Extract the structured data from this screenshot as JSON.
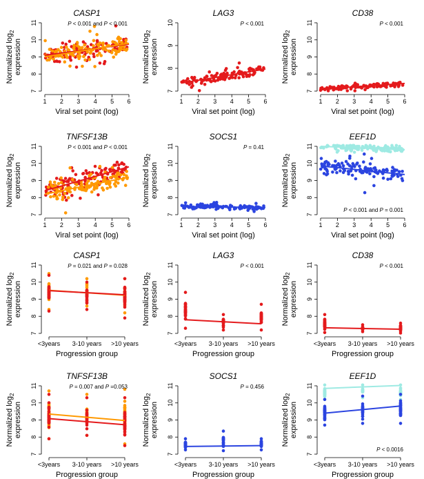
{
  "figure": {
    "panel_count": 12
  },
  "chart_data": [
    {
      "type": "scatter",
      "title": "CASP1",
      "xlabel": "Viral set point (log)",
      "ylabel": "Normalized log2 expression",
      "ylabel_main": "Normalized log",
      "ylabel_sub": "2",
      "ylabel_line2": "expression",
      "xlim": [
        1,
        6
      ],
      "ylim": [
        7,
        11
      ],
      "x_ticks": [
        1,
        2,
        3,
        4,
        5,
        6
      ],
      "y_ticks": [
        7,
        8,
        9,
        10,
        11
      ],
      "pvalue_segments": [
        [
          "P",
          true
        ],
        [
          " < 0.001 and ",
          false
        ],
        [
          "P",
          true
        ],
        [
          " < 0.001",
          false
        ]
      ],
      "pvalue_text": "P < 0.001 and P < 0.001",
      "pvalue_position": "top-right",
      "series": [
        {
          "name": "red",
          "color": "#e41a1c",
          "n": 120,
          "xrange": [
            1,
            5.9
          ],
          "line": [
            [
              1,
              9.1
            ],
            [
              6,
              9.75
            ]
          ],
          "noise": 0.5,
          "seed": 11
        },
        {
          "name": "orange",
          "color": "#ff9900",
          "n": 120,
          "xrange": [
            1,
            5.9
          ],
          "line": [
            [
              1,
              9.0
            ],
            [
              6,
              9.8
            ]
          ],
          "noise": 0.5,
          "seed": 12
        }
      ]
    },
    {
      "type": "scatter",
      "title": "LAG3",
      "xlabel": "Viral set point (log)",
      "ylabel": "Normalized log2 expression",
      "ylabel_main": "Normalized log",
      "ylabel_sub": "2",
      "ylabel_line2": "expression",
      "xlim": [
        1,
        6
      ],
      "ylim": [
        7,
        10
      ],
      "x_ticks": [
        1,
        2,
        3,
        4,
        5,
        6
      ],
      "y_ticks": [
        7,
        8,
        9,
        10
      ],
      "pvalue_segments": [
        [
          "P",
          true
        ],
        [
          " < 0.001",
          false
        ]
      ],
      "pvalue_text": "P < 0.001",
      "pvalue_position": "top-right",
      "series": [
        {
          "name": "red",
          "color": "#e41a1c",
          "n": 120,
          "xrange": [
            1,
            5.9
          ],
          "line": [
            [
              1,
              7.35
            ],
            [
              6,
              7.97
            ]
          ],
          "noise": 0.22,
          "seed": 21
        }
      ]
    },
    {
      "type": "scatter",
      "title": "CD38",
      "xlabel": "Viral set point (log)",
      "ylabel": "Normalized log2 expression",
      "ylabel_main": "Normalized log",
      "ylabel_sub": "2",
      "ylabel_line2": "expression",
      "xlim": [
        1,
        6
      ],
      "ylim": [
        7,
        11
      ],
      "x_ticks": [
        1,
        2,
        3,
        4,
        5,
        6
      ],
      "y_ticks": [
        7,
        8,
        9,
        10,
        11
      ],
      "pvalue_segments": [
        [
          "P",
          true
        ],
        [
          " < 0.001",
          false
        ]
      ],
      "pvalue_text": "P < 0.001",
      "pvalue_position": "top-right",
      "series": [
        {
          "name": "red",
          "color": "#e41a1c",
          "n": 120,
          "xrange": [
            1,
            5.9
          ],
          "line": [
            [
              1,
              7.12
            ],
            [
              6,
              7.45
            ]
          ],
          "noise": 0.12,
          "seed": 31
        }
      ]
    },
    {
      "type": "scatter",
      "title": "TNFSF13B",
      "xlabel": "Viral set point (log)",
      "ylabel": "Normalized log2 expression",
      "ylabel_main": "Normalized log",
      "ylabel_sub": "2",
      "ylabel_line2": "expression",
      "xlim": [
        1,
        6
      ],
      "ylim": [
        7,
        11
      ],
      "x_ticks": [
        1,
        2,
        3,
        4,
        5,
        6
      ],
      "y_ticks": [
        7,
        8,
        9,
        10,
        11
      ],
      "pvalue_segments": [
        [
          "P",
          true
        ],
        [
          " < 0.001 and ",
          false
        ],
        [
          "P",
          true
        ],
        [
          " < 0.001",
          false
        ]
      ],
      "pvalue_text": "P < 0.001 and P < 0.001",
      "pvalue_position": "top-right",
      "series": [
        {
          "name": "red",
          "color": "#e41a1c",
          "n": 120,
          "xrange": [
            1,
            5.9
          ],
          "line": [
            [
              1,
              8.4
            ],
            [
              6,
              9.8
            ]
          ],
          "noise": 0.55,
          "seed": 41
        },
        {
          "name": "orange",
          "color": "#ff9900",
          "n": 120,
          "xrange": [
            1,
            5.9
          ],
          "line": [
            [
              1,
              8.2
            ],
            [
              6,
              9.2
            ]
          ],
          "noise": 0.55,
          "seed": 42
        }
      ]
    },
    {
      "type": "scatter",
      "title": "SOCS1",
      "xlabel": "Viral set point (log)",
      "ylabel": "Normalized log2 expression",
      "ylabel_main": "Normalized log",
      "ylabel_sub": "2",
      "ylabel_line2": "expression",
      "xlim": [
        1,
        6
      ],
      "ylim": [
        7,
        11
      ],
      "x_ticks": [
        1,
        2,
        3,
        4,
        5,
        6
      ],
      "y_ticks": [
        7,
        8,
        9,
        10,
        11
      ],
      "pvalue_segments": [
        [
          "P",
          true
        ],
        [
          " = 0.41",
          false
        ]
      ],
      "pvalue_text": "P = 0.41",
      "pvalue_position": "top-right",
      "series": [
        {
          "name": "blue",
          "color": "#2b44e0",
          "n": 120,
          "xrange": [
            1,
            5.9
          ],
          "line": [
            [
              1,
              7.48
            ],
            [
              6,
              7.42
            ]
          ],
          "noise": 0.12,
          "seed": 51
        }
      ]
    },
    {
      "type": "scatter",
      "title": "EEF1D",
      "xlabel": "Viral set point (log)",
      "ylabel": "Normalized log2 expression",
      "ylabel_main": "Normalized log",
      "ylabel_sub": "2",
      "ylabel_line2": "expression",
      "xlim": [
        1,
        6
      ],
      "ylim": [
        7,
        11
      ],
      "x_ticks": [
        1,
        2,
        3,
        4,
        5,
        6
      ],
      "y_ticks": [
        7,
        8,
        9,
        10,
        11
      ],
      "pvalue_segments": [
        [
          "P",
          true
        ],
        [
          " < 0.001 and ",
          false
        ],
        [
          "P",
          true
        ],
        [
          " = 0.001",
          false
        ]
      ],
      "pvalue_text": "P < 0.001 and P = 0.001",
      "pvalue_position": "bottom-right",
      "series": [
        {
          "name": "cyan",
          "color": "#9eeae3",
          "n": 120,
          "xrange": [
            1,
            5.9
          ],
          "line": [
            [
              1,
              11.0
            ],
            [
              6,
              10.8
            ]
          ],
          "noise": 0.18,
          "seed": 61
        },
        {
          "name": "blue",
          "color": "#2b44e0",
          "n": 120,
          "xrange": [
            1,
            5.9
          ],
          "line": [
            [
              1,
              9.85
            ],
            [
              6,
              9.35
            ]
          ],
          "noise": 0.4,
          "seed": 62
        }
      ]
    },
    {
      "type": "strip",
      "title": "CASP1",
      "xlabel": "Progression group",
      "ylabel": "Normalized log2 expression",
      "ylabel_main": "Normalized log",
      "ylabel_sub": "2",
      "ylabel_line2": "expression",
      "categories": [
        "<3years",
        "3-10 years",
        ">10 years"
      ],
      "ylim": [
        7,
        11
      ],
      "y_ticks": [
        7,
        8,
        9,
        10,
        11
      ],
      "pvalue_segments": [
        [
          "P",
          true
        ],
        [
          " = 0.021 and ",
          false
        ],
        [
          "P",
          true
        ],
        [
          " = 0.028",
          false
        ]
      ],
      "pvalue_text": "P = 0.021 and P = 0.028",
      "pvalue_position": "top-right",
      "series": [
        {
          "name": "orange",
          "color": "#ff9900",
          "ranges": [
            [
              8.4,
              10.5
            ],
            [
              8.6,
              10.2
            ],
            [
              8.2,
              10.2
            ]
          ],
          "counts": [
            35,
            20,
            35
          ],
          "line": [
            9.52,
            9.23
          ],
          "seed": 71
        },
        {
          "name": "red",
          "color": "#e41a1c",
          "ranges": [
            [
              8.3,
              10.4
            ],
            [
              8.4,
              10.0
            ],
            [
              7.9,
              10.2
            ]
          ],
          "counts": [
            35,
            20,
            35
          ],
          "line": [
            9.5,
            9.26
          ],
          "seed": 72
        }
      ]
    },
    {
      "type": "strip",
      "title": "LAG3",
      "xlabel": "Progression group",
      "ylabel": "Normalized log2 expression",
      "ylabel_main": "Normalized log",
      "ylabel_sub": "2",
      "ylabel_line2": "expression",
      "categories": [
        "<3years",
        "3-10 years",
        ">10 years"
      ],
      "ylim": [
        7,
        11
      ],
      "y_ticks": [
        7,
        8,
        9,
        10,
        11
      ],
      "pvalue_segments": [
        [
          "P",
          true
        ],
        [
          " < 0.001",
          false
        ]
      ],
      "pvalue_text": "P < 0.001",
      "pvalue_position": "top-right",
      "series": [
        {
          "name": "red",
          "color": "#e41a1c",
          "ranges": [
            [
              7.3,
              9.4
            ],
            [
              7.2,
              8.1
            ],
            [
              7.2,
              8.7
            ]
          ],
          "counts": [
            40,
            22,
            40
          ],
          "line": [
            7.8,
            7.56
          ],
          "seed": 81
        }
      ]
    },
    {
      "type": "strip",
      "title": "CD38",
      "xlabel": "Progression group",
      "ylabel": "Normalized log2 expression",
      "ylabel_main": "Normalized log",
      "ylabel_sub": "2",
      "ylabel_line2": "expression",
      "categories": [
        "<3years",
        "3-10 years",
        ">10 years"
      ],
      "ylim": [
        7,
        11
      ],
      "y_ticks": [
        7,
        8,
        9,
        10,
        11
      ],
      "pvalue_segments": [
        [
          "P",
          true
        ],
        [
          " < 0.001",
          false
        ]
      ],
      "pvalue_text": "P < 0.001",
      "pvalue_position": "top-right",
      "series": [
        {
          "name": "red",
          "color": "#e41a1c",
          "ranges": [
            [
              7.05,
              8.1
            ],
            [
              7.1,
              7.5
            ],
            [
              7.0,
              7.6
            ]
          ],
          "counts": [
            35,
            20,
            35
          ],
          "line": [
            7.33,
            7.24
          ],
          "seed": 91
        }
      ]
    },
    {
      "type": "strip",
      "title": "TNFSF13B",
      "xlabel": "Progression group",
      "ylabel": "Normalized log2 expression",
      "ylabel_main": "Normalized log",
      "ylabel_sub": "2",
      "ylabel_line2": "expression",
      "categories": [
        "<3years",
        "3-10 years",
        ">10 years"
      ],
      "ylim": [
        7,
        11
      ],
      "y_ticks": [
        7,
        8,
        9,
        10,
        11
      ],
      "pvalue_segments": [
        [
          "P",
          true
        ],
        [
          " = 0.007 and ",
          false
        ],
        [
          "P",
          true
        ],
        [
          " =0.053",
          false
        ]
      ],
      "pvalue_text": "P = 0.007 and P =0.053",
      "pvalue_position": "top-right",
      "series": [
        {
          "name": "orange",
          "color": "#ff9900",
          "ranges": [
            [
              7.9,
              10.7
            ],
            [
              8.1,
              10.5
            ],
            [
              7.6,
              10.8
            ]
          ],
          "counts": [
            40,
            22,
            40
          ],
          "line": [
            9.35,
            8.97
          ],
          "seed": 101
        },
        {
          "name": "red",
          "color": "#e41a1c",
          "ranges": [
            [
              7.9,
              10.5
            ],
            [
              8.1,
              10.3
            ],
            [
              7.5,
              10.3
            ]
          ],
          "counts": [
            40,
            22,
            40
          ],
          "line": [
            9.08,
            8.72
          ],
          "seed": 102
        }
      ]
    },
    {
      "type": "strip",
      "title": "SOCS1",
      "xlabel": "Progression group",
      "ylabel": "Normalized log2 expression",
      "ylabel_main": "Normalized log",
      "ylabel_sub": "2",
      "ylabel_line2": "expression",
      "categories": [
        "<3years",
        "3-10 years",
        ">10 years"
      ],
      "ylim": [
        7,
        11
      ],
      "y_ticks": [
        7,
        8,
        9,
        10,
        11
      ],
      "pvalue_segments": [
        [
          "P",
          true
        ],
        [
          " = 0.456",
          false
        ]
      ],
      "pvalue_text": "P = 0.456",
      "pvalue_position": "top-right",
      "series": [
        {
          "name": "blue",
          "color": "#2b44e0",
          "ranges": [
            [
              7.25,
              7.9
            ],
            [
              7.2,
              8.35
            ],
            [
              7.25,
              7.9
            ]
          ],
          "counts": [
            35,
            22,
            35
          ],
          "line": [
            7.45,
            7.5
          ],
          "seed": 111
        }
      ]
    },
    {
      "type": "strip",
      "title": "EEF1D",
      "xlabel": "Progression group",
      "ylabel": "Normalized log2 expression",
      "ylabel_main": "Normalized log",
      "ylabel_sub": "2",
      "ylabel_line2": "expression",
      "categories": [
        "<3years",
        "3-10 years",
        ">10 years"
      ],
      "ylim": [
        7,
        11
      ],
      "y_ticks": [
        7,
        8,
        9,
        10,
        11
      ],
      "pvalue_segments": [
        [
          "P",
          true
        ],
        [
          " < 0.0016",
          false
        ]
      ],
      "pvalue_text": "P < 0.0016",
      "pvalue_position": "bottom-right",
      "series": [
        {
          "name": "cyan",
          "color": "#9eeae3",
          "ranges": [
            [
              10.2,
              11.05
            ],
            [
              10.3,
              11.05
            ],
            [
              10.2,
              11.05
            ]
          ],
          "counts": [
            35,
            22,
            35
          ],
          "line": [
            10.85,
            11.02
          ],
          "seed": 121
        },
        {
          "name": "blue",
          "color": "#2b44e0",
          "ranges": [
            [
              8.7,
              10.2
            ],
            [
              8.8,
              10.4
            ],
            [
              8.8,
              10.5
            ]
          ],
          "counts": [
            35,
            22,
            35
          ],
          "line": [
            9.4,
            9.82
          ],
          "seed": 122
        }
      ]
    }
  ]
}
